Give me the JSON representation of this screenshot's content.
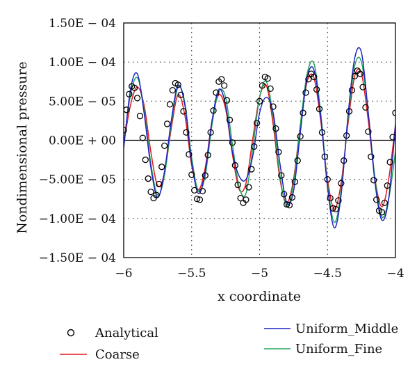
{
  "chart_data": {
    "type": "line",
    "xlabel": "x coordinate",
    "ylabel": "Nondimensional pressure",
    "xlim": [
      -6,
      -4
    ],
    "ylim": [
      -0.00015,
      0.00015
    ],
    "x_ticks": [
      -6,
      -5.5,
      -5,
      -4.5,
      -4
    ],
    "x_tick_labels": [
      "−6",
      "−5.5",
      "−5",
      "−4.5",
      "−4"
    ],
    "y_ticks": [
      0.00015,
      0.0001,
      5e-05,
      0,
      -5e-05,
      -0.0001,
      -0.00015
    ],
    "y_tick_labels": [
      "1.50E − 04",
      "1.00E − 04",
      "5.00E − 05",
      "0.00E + 00",
      "−5.00E − 05",
      "−1.00E − 04",
      "−1.50E − 04"
    ],
    "grid": "dotted, major ticks",
    "legend_position": "below plot",
    "series": [
      {
        "name": "Analytical",
        "style": "markers",
        "color": "#000000",
        "x": [
          -6,
          -5.98,
          -5.96,
          -5.94,
          -5.92,
          -5.9,
          -5.88,
          -5.86,
          -5.84,
          -5.82,
          -5.8,
          -5.78,
          -5.76,
          -5.74,
          -5.72,
          -5.7,
          -5.68,
          -5.66,
          -5.64,
          -5.62,
          -5.6,
          -5.58,
          -5.56,
          -5.54,
          -5.52,
          -5.5,
          -5.48,
          -5.46,
          -5.44,
          -5.42,
          -5.4,
          -5.38,
          -5.36,
          -5.34,
          -5.32,
          -5.3,
          -5.28,
          -5.26,
          -5.24,
          -5.22,
          -5.2,
          -5.18,
          -5.16,
          -5.14,
          -5.12,
          -5.1,
          -5.08,
          -5.06,
          -5.04,
          -5.02,
          -5,
          -4.98,
          -4.96,
          -4.94,
          -4.92,
          -4.9,
          -4.88,
          -4.86,
          -4.84,
          -4.82,
          -4.8,
          -4.78,
          -4.76,
          -4.74,
          -4.72,
          -4.7,
          -4.68,
          -4.66,
          -4.64,
          -4.62,
          -4.6,
          -4.58,
          -4.56,
          -4.54,
          -4.52,
          -4.5,
          -4.48,
          -4.46,
          -4.44,
          -4.42,
          -4.4,
          -4.38,
          -4.36,
          -4.34,
          -4.32,
          -4.3,
          -4.28,
          -4.26,
          -4.24,
          -4.22,
          -4.2,
          -4.18,
          -4.16,
          -4.14,
          -4.12,
          -4.1,
          -4.08,
          -4.06,
          -4.04,
          -4.02,
          -4
        ],
        "y": [
          1.3e-05,
          3.9e-05,
          5.9e-05,
          6.9e-05,
          6.7e-05,
          5.4e-05,
          3.1e-05,
          3e-06,
          -2.5e-05,
          -4.9e-05,
          -6.6e-05,
          -7.4e-05,
          -7e-05,
          -5.6e-05,
          -3.4e-05,
          -7e-06,
          2.1e-05,
          4.6e-05,
          6.4e-05,
          7.3e-05,
          7.1e-05,
          5.8e-05,
          3.7e-05,
          1e-05,
          -1.8e-05,
          -4.4e-05,
          -6.4e-05,
          -7.5e-05,
          -7.6e-05,
          -6.5e-05,
          -4.5e-05,
          -1.9e-05,
          1e-05,
          3.8e-05,
          6.1e-05,
          7.5e-05,
          7.8e-05,
          7e-05,
          5.1e-05,
          2.6e-05,
          -3e-06,
          -3.2e-05,
          -5.7e-05,
          -7.4e-05,
          -8e-05,
          -7.6e-05,
          -6e-05,
          -3.7e-05,
          -8e-06,
          2.2e-05,
          5e-05,
          7e-05,
          8.1e-05,
          7.9e-05,
          6.6e-05,
          4.3e-05,
          1.5e-05,
          -1.5e-05,
          -4.5e-05,
          -6.9e-05,
          -8.2e-05,
          -8.3e-05,
          -7.3e-05,
          -5.3e-05,
          -2.6e-05,
          5e-06,
          3.5e-05,
          6.1e-05,
          7.8e-05,
          8.5e-05,
          8.1e-05,
          6.5e-05,
          4e-05,
          1e-05,
          -2.1e-05,
          -5e-05,
          -7.4e-05,
          -8.7e-05,
          -8.8e-05,
          -7.7e-05,
          -5.5e-05,
          -2.6e-05,
          6e-06,
          3.7e-05,
          6.4e-05,
          8.2e-05,
          8.9e-05,
          8.5e-05,
          6.8e-05,
          4.2e-05,
          1.1e-05,
          -2.1e-05,
          -5.1e-05,
          -7.6e-05,
          -9e-05,
          -9.2e-05,
          -8e-05,
          -5.8e-05,
          -2.8e-05,
          4e-06,
          3.5e-05
        ]
      },
      {
        "name": "Coarse",
        "style": "line",
        "color": "#e0191c",
        "x": [
          -6,
          -5.95,
          -5.9,
          -5.85,
          -5.8,
          -5.75,
          -5.7,
          -5.65,
          -5.6,
          -5.55,
          -5.5,
          -5.45,
          -5.4,
          -5.35,
          -5.3,
          -5.25,
          -5.2,
          -5.15,
          -5.1,
          -5.05,
          -5,
          -4.95,
          -4.9,
          -4.85,
          -4.8,
          -4.75,
          -4.7,
          -4.65,
          -4.6,
          -4.55,
          -4.5,
          -4.45,
          -4.4,
          -4.35,
          -4.3,
          -4.25,
          -4.2,
          -4.15,
          -4.1,
          -4.05,
          -4
        ],
        "y": [
          -5e-06,
          4.5e-05,
          6.8e-05,
          4.5e-05,
          -1.5e-05,
          -5.8e-05,
          -4.2e-05,
          1.5e-05,
          5.8e-05,
          3.2e-05,
          -3.2e-05,
          -6.3e-05,
          -3.5e-05,
          2.5e-05,
          5.8e-05,
          4e-05,
          -1.8e-05,
          -6.3e-05,
          -5.5e-05,
          2e-06,
          5.5e-05,
          7e-05,
          2e-05,
          -5e-05,
          -8e-05,
          -5e-05,
          2e-05,
          7.5e-05,
          8e-05,
          2.5e-05,
          -5e-05,
          -8.8e-05,
          -5.5e-05,
          2e-05,
          8.2e-05,
          8.5e-05,
          2.5e-05,
          -5e-05,
          -8.5e-05,
          -5e-05,
          2e-05
        ]
      },
      {
        "name": "Uniform_Middle",
        "style": "line",
        "color": "#1f24c4",
        "x": [
          -6,
          -5.95,
          -5.9,
          -5.85,
          -5.8,
          -5.75,
          -5.7,
          -5.65,
          -5.6,
          -5.55,
          -5.5,
          -5.45,
          -5.4,
          -5.35,
          -5.3,
          -5.25,
          -5.2,
          -5.15,
          -5.1,
          -5.05,
          -5,
          -4.95,
          -4.9,
          -4.85,
          -4.8,
          -4.75,
          -4.7,
          -4.65,
          -4.6,
          -4.55,
          -4.5,
          -4.45,
          -4.4,
          -4.35,
          -4.3,
          -4.25,
          -4.2,
          -4.15,
          -4.1,
          -4.05,
          -4
        ],
        "y": [
          -1e-05,
          6.5e-05,
          8.5e-05,
          3.5e-05,
          -3.5e-05,
          -7.3e-05,
          -4e-05,
          2.5e-05,
          7e-05,
          4.5e-05,
          -2.8e-05,
          -6.8e-05,
          -4e-05,
          2.5e-05,
          6.5e-05,
          4.5e-05,
          -1.5e-05,
          -4.6e-05,
          -5e-05,
          -2e-05,
          3.5e-05,
          5.5e-05,
          3.5e-05,
          -3e-05,
          -8e-05,
          -6.5e-05,
          1e-05,
          8e-05,
          9e-05,
          3e-05,
          -6e-05,
          -0.000112,
          -7e-05,
          3e-05,
          0.000105,
          0.000112,
          3.5e-05,
          -5.5e-05,
          -0.000102,
          -7.5e-05,
          2e-05
        ]
      },
      {
        "name": "Uniform_Fine",
        "style": "line",
        "color": "#21a35d",
        "x": [
          -6,
          -5.95,
          -5.9,
          -5.85,
          -5.8,
          -5.75,
          -5.7,
          -5.65,
          -5.6,
          -5.55,
          -5.5,
          -5.45,
          -5.4,
          -5.35,
          -5.3,
          -5.25,
          -5.2,
          -5.15,
          -5.1,
          -5.05,
          -5,
          -4.95,
          -4.9,
          -4.85,
          -4.8,
          -4.75,
          -4.7,
          -4.65,
          -4.6,
          -4.55,
          -4.5,
          -4.45,
          -4.4,
          -4.35,
          -4.3,
          -4.25,
          -4.2,
          -4.15,
          -4.1,
          -4.05,
          -4
        ],
        "y": [
          -5e-06,
          5.8e-05,
          8e-05,
          4e-05,
          -3e-05,
          -7e-05,
          -4.5e-05,
          2e-05,
          6.8e-05,
          4.8e-05,
          -2.2e-05,
          -6.5e-05,
          -4.5e-05,
          2e-05,
          6.2e-05,
          5.5e-05,
          -5e-06,
          -6e-05,
          -6.8e-05,
          -1e-05,
          5.5e-05,
          7.5e-05,
          3e-05,
          -4.5e-05,
          -8.5e-05,
          -5.5e-05,
          2e-05,
          8.5e-05,
          9.8e-05,
          3.5e-05,
          -5.5e-05,
          -0.000105,
          -6.5e-05,
          2.5e-05,
          9.5e-05,
          0.0001,
          3.5e-05,
          -5e-05,
          -9.8e-05,
          -7.5e-05,
          -1.5e-05
        ]
      }
    ]
  }
}
